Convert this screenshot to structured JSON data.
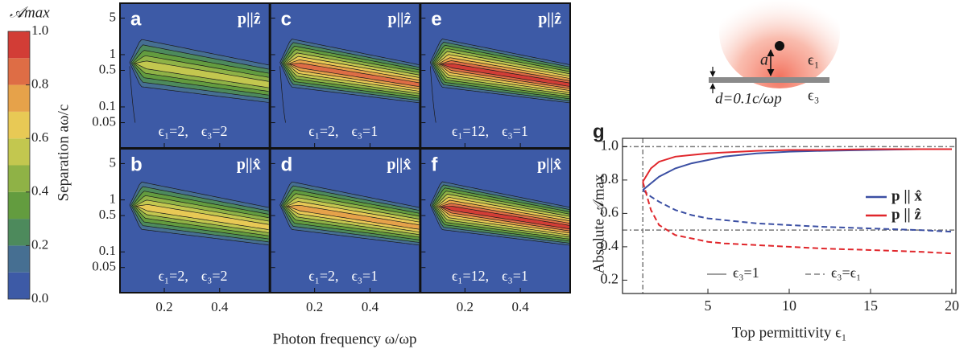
{
  "chart_data": [
    {
      "type": "contour",
      "colorbar": {
        "title": "𝒜max",
        "lim": [
          0,
          1
        ],
        "ticks": [
          {
            "value": 0,
            "label": "0.0"
          },
          0.2,
          0.4,
          0.6,
          0.8,
          {
            "value": 1,
            "label": "1.0"
          }
        ],
        "colors": [
          "#3d5aa6",
          "#466f92",
          "#4d8a5c",
          "#639c3f",
          "#8fb246",
          "#c3c74f",
          "#e8c955",
          "#e6a24a",
          "#de6d45",
          "#d23d36"
        ]
      },
      "ylabel": "Separation aω/c",
      "xlabel": "Photon frequency ω/ωp",
      "xlim": [
        0.043,
        0.577
      ],
      "xticks": [
        0.2,
        0.4
      ],
      "ylim": [
        0.017,
        9.3
      ],
      "yticks": [
        0.05,
        0.1,
        0.5,
        1,
        5
      ],
      "log_y": true,
      "panels": [
        {
          "letter": "a",
          "polarization": "p||ẑ",
          "eps1": "ϵ₁=2,",
          "eps3": "ϵ₃=2"
        },
        {
          "letter": "b",
          "polarization": "p||x̂",
          "eps1": "ϵ₁=2,",
          "eps3": "ϵ₃=2"
        },
        {
          "letter": "c",
          "polarization": "p||ẑ",
          "eps1": "ϵ₁=2,",
          "eps3": "ϵ₃=1"
        },
        {
          "letter": "d",
          "polarization": "p||x̂",
          "eps1": "ϵ₁=2,",
          "eps3": "ϵ₃=1"
        },
        {
          "letter": "e",
          "polarization": "p||ẑ",
          "eps1": "ϵ₁=12,",
          "eps3": "ϵ₃=1"
        },
        {
          "letter": "f",
          "polarization": "p||x̂",
          "eps1": "ϵ₁=12,",
          "eps3": "ϵ₃=1"
        }
      ]
    },
    {
      "type": "line",
      "letter": "g",
      "xlabel": "Top permittivity ϵ₁",
      "ylabel": "Absolute 𝒜max",
      "xlim": [
        -0.25,
        20.25
      ],
      "xticks": [
        5,
        10,
        15,
        20
      ],
      "ylim": [
        0.12,
        1.05
      ],
      "yticks": [
        0.2,
        0.4,
        0.6,
        0.8,
        {
          "value": 1,
          "label": "1.0"
        }
      ],
      "hlines": [
        1,
        0.5
      ],
      "vlines": [
        1
      ],
      "legend": "right",
      "x": [
        1,
        1.5,
        2,
        3,
        4,
        5,
        6,
        8,
        10,
        12,
        15,
        18,
        20
      ],
      "line_styles": [
        {
          "label": "ϵ₃=1",
          "dash": "solid"
        },
        {
          "label": "ϵ₃=ϵ₁",
          "dash": "dashed"
        }
      ],
      "series": [
        {
          "name": "p || x̂",
          "color": "#3b4fa3",
          "values": [
            0.74,
            0.78,
            0.82,
            0.87,
            0.9,
            0.92,
            0.94,
            0.96,
            0.97,
            0.975,
            0.98,
            0.985,
            0.985
          ],
          "dashed_values": [
            0.74,
            0.7,
            0.67,
            0.62,
            0.59,
            0.57,
            0.56,
            0.54,
            0.53,
            0.52,
            0.51,
            0.5,
            0.49
          ]
        },
        {
          "name": "p || ẑ",
          "color": "#e0262b",
          "values": [
            0.79,
            0.87,
            0.91,
            0.94,
            0.95,
            0.96,
            0.965,
            0.975,
            0.98,
            0.98,
            0.985,
            0.985,
            0.985
          ],
          "dashed_values": [
            0.79,
            0.62,
            0.53,
            0.47,
            0.45,
            0.43,
            0.42,
            0.41,
            0.4,
            0.39,
            0.38,
            0.37,
            0.36
          ]
        }
      ]
    }
  ],
  "schematic": {
    "a": "a",
    "eps1": "ϵ₁",
    "eps3": "ϵ₃",
    "d": "d=0.1c/ωp"
  }
}
